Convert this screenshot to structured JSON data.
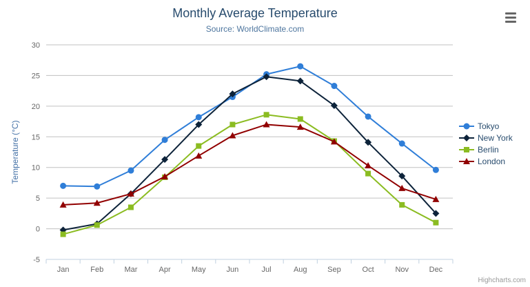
{
  "credits": {
    "text": "Highcharts.com"
  },
  "exporting": {
    "menu_icon": "hamburger-icon"
  },
  "chart_data": {
    "type": "line",
    "title": "Monthly Average Temperature",
    "subtitle": "Source: WorldClimate.com",
    "categories": [
      "Jan",
      "Feb",
      "Mar",
      "Apr",
      "May",
      "Jun",
      "Jul",
      "Aug",
      "Sep",
      "Oct",
      "Nov",
      "Dec"
    ],
    "xlabel": "",
    "ylabel": "Temperature (°C)",
    "ylim": [
      -5,
      30
    ],
    "ytick_interval": 5,
    "grid": true,
    "legend_position": "right",
    "colors": {
      "title": "#274b6d",
      "subtitle": "#4d759e",
      "axis_title": "#4572A7",
      "axis_labels": "#666666",
      "gridline": "#C0C0C0",
      "axis_line": "#C0D0E0",
      "legend_text": "#274b6d"
    },
    "series": [
      {
        "name": "Tokyo",
        "color": "#2f7ed8",
        "marker": "circle",
        "values": [
          7.0,
          6.9,
          9.5,
          14.5,
          18.2,
          21.5,
          25.2,
          26.5,
          23.3,
          18.3,
          13.9,
          9.6
        ]
      },
      {
        "name": "New York",
        "color": "#0d233a",
        "marker": "diamond",
        "values": [
          -0.2,
          0.8,
          5.7,
          11.3,
          17.0,
          22.0,
          24.8,
          24.1,
          20.1,
          14.1,
          8.6,
          2.5
        ]
      },
      {
        "name": "Berlin",
        "color": "#8bbc21",
        "marker": "square",
        "values": [
          -0.9,
          0.6,
          3.5,
          8.4,
          13.5,
          17.0,
          18.6,
          17.9,
          14.3,
          9.0,
          3.9,
          1.0
        ]
      },
      {
        "name": "London",
        "color": "#910000",
        "marker": "triangle",
        "values": [
          3.9,
          4.2,
          5.7,
          8.5,
          11.9,
          15.2,
          17.0,
          16.6,
          14.2,
          10.3,
          6.6,
          4.8
        ]
      }
    ]
  }
}
